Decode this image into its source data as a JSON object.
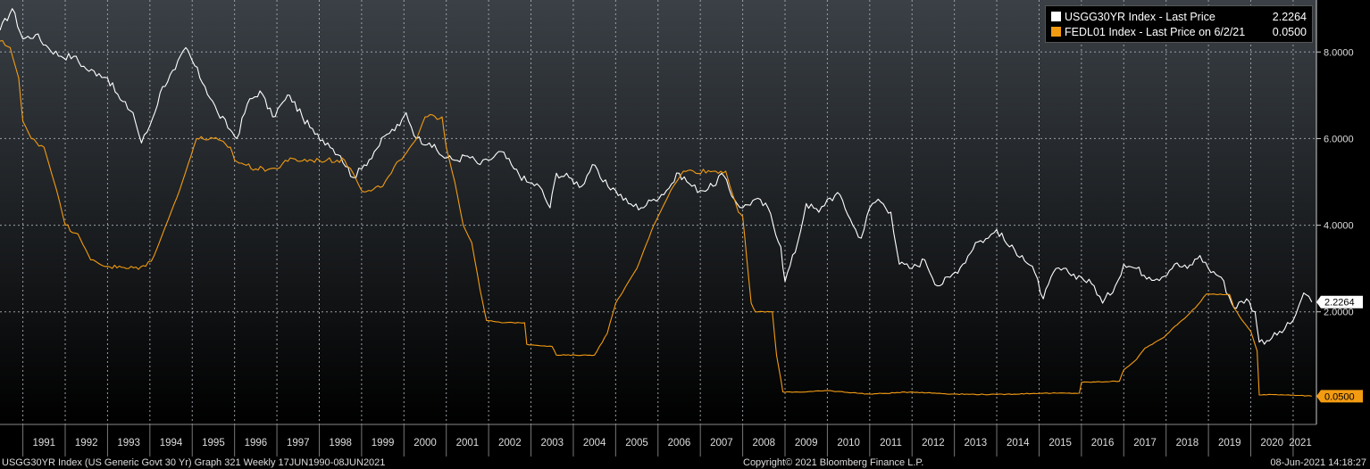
{
  "chart_data": {
    "type": "line",
    "title": "",
    "xlabel": "",
    "ylabel": "",
    "ylim": [
      -0.6,
      9.2
    ],
    "y_ticks": [
      2.0,
      4.0,
      6.0,
      8.0
    ],
    "y_tick_labels": [
      "2.0000",
      "4.0000",
      "6.0000",
      "8.0000"
    ],
    "x_tick_labels": [
      "1991",
      "1992",
      "1993",
      "1994",
      "1995",
      "1996",
      "1997",
      "1998",
      "1999",
      "2000",
      "2001",
      "2002",
      "2003",
      "2004",
      "2005",
      "2006",
      "2007",
      "2008",
      "2009",
      "2010",
      "2011",
      "2012",
      "2013",
      "2014",
      "2015",
      "2016",
      "2017",
      "2018",
      "2019",
      "2020",
      "2021"
    ],
    "grid": true,
    "legend_position": "top-right",
    "series": [
      {
        "name": "USGG30YR Index - Last Price",
        "legend_value": "2.2264",
        "last_label": "2.2264",
        "color": "#ffffff",
        "points": [
          [
            1990.46,
            8.5
          ],
          [
            1990.75,
            9.0
          ],
          [
            1991.0,
            8.3
          ],
          [
            1991.3,
            8.4
          ],
          [
            1991.6,
            8.1
          ],
          [
            1991.9,
            7.9
          ],
          [
            1992.2,
            7.9
          ],
          [
            1992.5,
            7.6
          ],
          [
            1992.8,
            7.5
          ],
          [
            1993.0,
            7.4
          ],
          [
            1993.3,
            6.9
          ],
          [
            1993.6,
            6.6
          ],
          [
            1993.8,
            5.9
          ],
          [
            1994.0,
            6.3
          ],
          [
            1994.3,
            7.2
          ],
          [
            1994.6,
            7.6
          ],
          [
            1994.85,
            8.1
          ],
          [
            1995.0,
            7.8
          ],
          [
            1995.3,
            7.2
          ],
          [
            1995.6,
            6.6
          ],
          [
            1995.9,
            6.2
          ],
          [
            1996.05,
            6.0
          ],
          [
            1996.3,
            6.8
          ],
          [
            1996.6,
            7.1
          ],
          [
            1996.9,
            6.5
          ],
          [
            1997.2,
            6.9
          ],
          [
            1997.3,
            7.0
          ],
          [
            1997.6,
            6.5
          ],
          [
            1997.9,
            6.1
          ],
          [
            1998.2,
            5.9
          ],
          [
            1998.5,
            5.6
          ],
          [
            1998.8,
            5.1
          ],
          [
            1999.0,
            5.3
          ],
          [
            1999.3,
            5.7
          ],
          [
            1999.6,
            6.1
          ],
          [
            1999.9,
            6.3
          ],
          [
            2000.05,
            6.6
          ],
          [
            2000.3,
            6.0
          ],
          [
            2000.6,
            5.9
          ],
          [
            2000.9,
            5.6
          ],
          [
            2001.2,
            5.5
          ],
          [
            2001.5,
            5.6
          ],
          [
            2001.8,
            5.4
          ],
          [
            2002.0,
            5.5
          ],
          [
            2002.3,
            5.7
          ],
          [
            2002.6,
            5.3
          ],
          [
            2002.9,
            5.0
          ],
          [
            2003.2,
            4.9
          ],
          [
            2003.45,
            4.4
          ],
          [
            2003.6,
            5.2
          ],
          [
            2003.9,
            5.1
          ],
          [
            2004.2,
            4.9
          ],
          [
            2004.45,
            5.4
          ],
          [
            2004.7,
            5.0
          ],
          [
            2005.0,
            4.8
          ],
          [
            2005.3,
            4.5
          ],
          [
            2005.6,
            4.4
          ],
          [
            2005.9,
            4.6
          ],
          [
            2006.2,
            4.8
          ],
          [
            2006.5,
            5.2
          ],
          [
            2006.8,
            4.9
          ],
          [
            2007.0,
            4.8
          ],
          [
            2007.3,
            4.9
          ],
          [
            2007.5,
            5.2
          ],
          [
            2007.8,
            4.6
          ],
          [
            2008.0,
            4.4
          ],
          [
            2008.3,
            4.6
          ],
          [
            2008.6,
            4.4
          ],
          [
            2008.9,
            3.5
          ],
          [
            2009.0,
            2.7
          ],
          [
            2009.3,
            3.6
          ],
          [
            2009.5,
            4.5
          ],
          [
            2009.8,
            4.3
          ],
          [
            2010.0,
            4.6
          ],
          [
            2010.3,
            4.7
          ],
          [
            2010.6,
            4.0
          ],
          [
            2010.8,
            3.7
          ],
          [
            2011.0,
            4.4
          ],
          [
            2011.2,
            4.6
          ],
          [
            2011.5,
            4.3
          ],
          [
            2011.7,
            3.1
          ],
          [
            2012.0,
            3.0
          ],
          [
            2012.3,
            3.2
          ],
          [
            2012.6,
            2.6
          ],
          [
            2012.9,
            2.8
          ],
          [
            2013.2,
            3.1
          ],
          [
            2013.5,
            3.6
          ],
          [
            2013.8,
            3.7
          ],
          [
            2014.0,
            3.9
          ],
          [
            2014.3,
            3.5
          ],
          [
            2014.6,
            3.3
          ],
          [
            2014.9,
            2.9
          ],
          [
            2015.1,
            2.3
          ],
          [
            2015.4,
            3.0
          ],
          [
            2015.7,
            2.9
          ],
          [
            2016.0,
            2.8
          ],
          [
            2016.3,
            2.6
          ],
          [
            2016.5,
            2.2
          ],
          [
            2016.8,
            2.6
          ],
          [
            2017.0,
            3.1
          ],
          [
            2017.3,
            3.0
          ],
          [
            2017.6,
            2.8
          ],
          [
            2017.9,
            2.8
          ],
          [
            2018.2,
            3.1
          ],
          [
            2018.5,
            3.0
          ],
          [
            2018.8,
            3.3
          ],
          [
            2019.0,
            3.0
          ],
          [
            2019.3,
            2.8
          ],
          [
            2019.6,
            2.1
          ],
          [
            2019.9,
            2.3
          ],
          [
            2020.1,
            2.0
          ],
          [
            2020.2,
            1.3
          ],
          [
            2020.5,
            1.4
          ],
          [
            2020.8,
            1.6
          ],
          [
            2021.0,
            1.8
          ],
          [
            2021.2,
            2.3
          ],
          [
            2021.3,
            2.4
          ],
          [
            2021.44,
            2.2264
          ]
        ]
      },
      {
        "name": "FEDL01 Index - Last Price on 6/2/21",
        "legend_value": "0.0500",
        "last_label": "0.0500",
        "color": "#f39c12",
        "points": [
          [
            1990.46,
            8.25
          ],
          [
            1990.7,
            8.1
          ],
          [
            1990.9,
            7.4
          ],
          [
            1991.0,
            6.4
          ],
          [
            1991.2,
            6.0
          ],
          [
            1991.5,
            5.8
          ],
          [
            1991.8,
            4.8
          ],
          [
            1992.0,
            4.0
          ],
          [
            1992.3,
            3.8
          ],
          [
            1992.6,
            3.2
          ],
          [
            1993.0,
            3.05
          ],
          [
            1993.5,
            3.0
          ],
          [
            1993.9,
            3.05
          ],
          [
            1994.1,
            3.3
          ],
          [
            1994.3,
            3.8
          ],
          [
            1994.5,
            4.3
          ],
          [
            1994.7,
            4.8
          ],
          [
            1994.9,
            5.4
          ],
          [
            1995.1,
            6.0
          ],
          [
            1995.5,
            6.0
          ],
          [
            1995.9,
            5.8
          ],
          [
            1996.0,
            5.5
          ],
          [
            1996.5,
            5.3
          ],
          [
            1997.0,
            5.3
          ],
          [
            1997.2,
            5.5
          ],
          [
            1998.0,
            5.5
          ],
          [
            1998.6,
            5.5
          ],
          [
            1998.8,
            5.2
          ],
          [
            1999.0,
            4.8
          ],
          [
            1999.5,
            4.9
          ],
          [
            1999.7,
            5.2
          ],
          [
            1999.9,
            5.5
          ],
          [
            2000.0,
            5.6
          ],
          [
            2000.3,
            6.0
          ],
          [
            2000.5,
            6.5
          ],
          [
            2000.9,
            6.5
          ],
          [
            2001.0,
            5.8
          ],
          [
            2001.2,
            5.0
          ],
          [
            2001.4,
            4.0
          ],
          [
            2001.6,
            3.6
          ],
          [
            2001.8,
            2.5
          ],
          [
            2001.95,
            1.8
          ],
          [
            2002.3,
            1.75
          ],
          [
            2002.85,
            1.75
          ],
          [
            2002.9,
            1.25
          ],
          [
            2003.5,
            1.2
          ],
          [
            2003.6,
            1.0
          ],
          [
            2004.5,
            1.0
          ],
          [
            2004.8,
            1.5
          ],
          [
            2005.0,
            2.2
          ],
          [
            2005.5,
            3.0
          ],
          [
            2005.9,
            4.0
          ],
          [
            2006.3,
            4.8
          ],
          [
            2006.6,
            5.25
          ],
          [
            2007.6,
            5.25
          ],
          [
            2007.7,
            4.9
          ],
          [
            2007.9,
            4.3
          ],
          [
            2008.0,
            4.2
          ],
          [
            2008.1,
            3.2
          ],
          [
            2008.2,
            2.2
          ],
          [
            2008.3,
            2.0
          ],
          [
            2008.7,
            2.0
          ],
          [
            2008.8,
            1.0
          ],
          [
            2008.95,
            0.15
          ],
          [
            2009.5,
            0.15
          ],
          [
            2010.0,
            0.18
          ],
          [
            2011.0,
            0.1
          ],
          [
            2012.0,
            0.15
          ],
          [
            2013.0,
            0.1
          ],
          [
            2014.0,
            0.09
          ],
          [
            2015.0,
            0.12
          ],
          [
            2015.95,
            0.12
          ],
          [
            2016.0,
            0.37
          ],
          [
            2016.9,
            0.4
          ],
          [
            2017.0,
            0.66
          ],
          [
            2017.3,
            0.9
          ],
          [
            2017.5,
            1.16
          ],
          [
            2017.95,
            1.41
          ],
          [
            2018.2,
            1.66
          ],
          [
            2018.5,
            1.91
          ],
          [
            2018.75,
            2.16
          ],
          [
            2018.95,
            2.41
          ],
          [
            2019.5,
            2.4
          ],
          [
            2019.6,
            2.1
          ],
          [
            2019.8,
            1.8
          ],
          [
            2020.0,
            1.55
          ],
          [
            2020.15,
            1.1
          ],
          [
            2020.2,
            0.08
          ],
          [
            2020.6,
            0.09
          ],
          [
            2021.0,
            0.08
          ],
          [
            2021.44,
            0.05
          ]
        ]
      }
    ]
  },
  "legend": {
    "row1_label": "USGG30YR Index  - Last Price",
    "row1_value": "2.2264",
    "row2_label": "FEDL01 Index  - Last Price on 6/2/21",
    "row2_value": "0.0500"
  },
  "footer": {
    "left": "USGG30YR Index (US Generic Govt 30 Yr) Graph 321  Weekly 17JUN1990-08JUN2021",
    "center": "Copyright© 2021 Bloomberg Finance L.P.",
    "right": "08-Jun-2021 14:18:27"
  }
}
